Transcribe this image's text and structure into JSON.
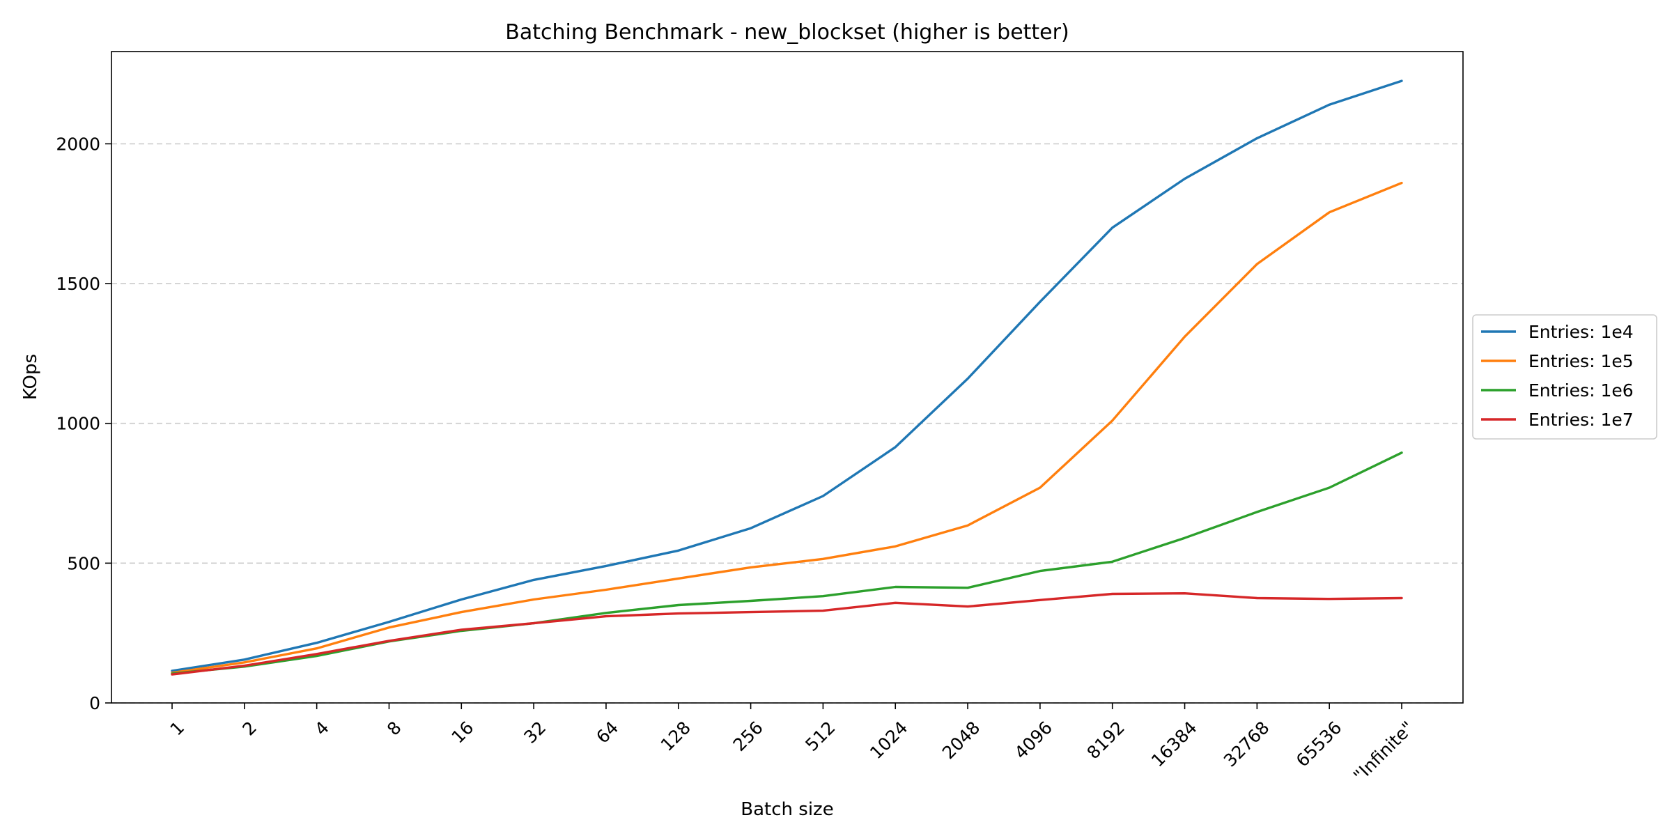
{
  "chart_data": {
    "type": "line",
    "title": "Batching Benchmark - new_blockset (higher is better)",
    "xlabel": "Batch size",
    "ylabel": "KOps",
    "categories": [
      "1",
      "2",
      "4",
      "8",
      "16",
      "32",
      "64",
      "128",
      "256",
      "512",
      "1024",
      "2048",
      "4096",
      "8192",
      "16384",
      "32768",
      "65536",
      "\"Infinite\""
    ],
    "ylim": [
      0,
      2330
    ],
    "yticks": [
      0,
      500,
      1000,
      1500,
      2000
    ],
    "grid": "horizontal-dashed",
    "legend_position": "right",
    "series": [
      {
        "name": "Entries: 1e4",
        "color": "#1f77b4",
        "values": [
          115,
          155,
          215,
          290,
          370,
          440,
          490,
          545,
          625,
          740,
          915,
          1160,
          1435,
          1700,
          1875,
          2020,
          2140,
          2225
        ]
      },
      {
        "name": "Entries: 1e5",
        "color": "#ff7f0e",
        "values": [
          108,
          145,
          195,
          270,
          325,
          370,
          405,
          445,
          485,
          515,
          560,
          635,
          770,
          1010,
          1310,
          1570,
          1755,
          1860
        ]
      },
      {
        "name": "Entries: 1e6",
        "color": "#2ca02c",
        "values": [
          105,
          130,
          168,
          220,
          258,
          285,
          322,
          350,
          365,
          382,
          415,
          412,
          472,
          505,
          590,
          683,
          770,
          895
        ]
      },
      {
        "name": "Entries: 1e7",
        "color": "#d62728",
        "values": [
          102,
          133,
          175,
          222,
          262,
          285,
          310,
          320,
          325,
          330,
          358,
          345,
          368,
          390,
          392,
          375,
          372,
          375
        ]
      }
    ]
  }
}
